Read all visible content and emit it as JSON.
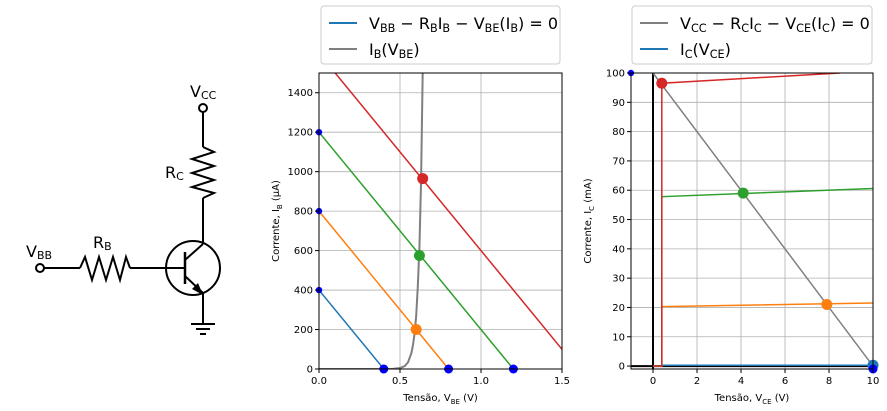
{
  "circuit": {
    "labels": {
      "vcc": {
        "main": "V",
        "sub": "CC"
      },
      "rc": {
        "main": "R",
        "sub": "C"
      },
      "vbb": {
        "main": "V",
        "sub": "BB"
      },
      "rb": {
        "main": "R",
        "sub": "B"
      }
    }
  },
  "chart_data": [
    {
      "type": "line",
      "xlabel": {
        "main": "Tensão, V",
        "sub": "BE",
        "unit": " (V)"
      },
      "ylabel": {
        "main": "Corrente, I",
        "sub": "B",
        "unit": " (µA)"
      },
      "xlim": [
        0,
        1.5
      ],
      "ylim": [
        0,
        1500
      ],
      "xticks": [
        "0.0",
        "0.5",
        "1.0",
        "1.5"
      ],
      "yticks": [
        "0",
        "200",
        "400",
        "600",
        "800",
        "1000",
        "1200",
        "1400"
      ],
      "xtick_values": [
        0,
        0.5,
        1.0,
        1.5
      ],
      "ytick_values": [
        0,
        200,
        400,
        600,
        800,
        1000,
        1200,
        1400
      ],
      "grid": true,
      "legend": {
        "placement": "top-outside",
        "entries": [
          {
            "label": "V_BB − R_B·I_B − V_BE(I_B) = 0",
            "color": "#1f77b4",
            "parts": [
              [
                "V",
                ""
              ],
              [
                "BB",
                "sub"
              ],
              [
                " − R",
                ""
              ],
              [
                "B",
                "sub"
              ],
              [
                "I",
                ""
              ],
              [
                "B",
                "sub"
              ],
              [
                " − V",
                ""
              ],
              [
                "BE",
                "sub"
              ],
              [
                "(I",
                ""
              ],
              [
                "B",
                "sub"
              ],
              [
                ") = 0",
                ""
              ]
            ]
          },
          {
            "label": "I_B(V_BE)",
            "color": "#7f7f7f",
            "parts": [
              [
                "I",
                ""
              ],
              [
                "B",
                "sub"
              ],
              [
                "(V",
                ""
              ],
              [
                "BE",
                "sub"
              ],
              [
                ")",
                ""
              ]
            ]
          }
        ]
      },
      "series": [
        {
          "color": "#1f77b4",
          "x": [
            0,
            0.4
          ],
          "y": [
            400,
            0
          ]
        },
        {
          "color": "#ff7f0e",
          "x": [
            0,
            0.8
          ],
          "y": [
            800,
            0
          ]
        },
        {
          "color": "#2ca02c",
          "x": [
            0,
            1.2
          ],
          "y": [
            1200,
            0
          ]
        },
        {
          "color": "#d62728",
          "x": [
            0,
            1.5
          ],
          "y": [
            1600,
            100
          ]
        }
      ],
      "diode_curve": {
        "color": "#7f7f7f",
        "x": [
          0,
          0.45,
          0.5,
          0.53,
          0.55,
          0.57,
          0.58,
          0.59,
          0.6,
          0.61,
          0.62,
          0.63,
          0.64
        ],
        "y": [
          0,
          0,
          5,
          15,
          35,
          80,
          120,
          180,
          270,
          420,
          620,
          950,
          1500
        ]
      },
      "operating_points": [
        {
          "x": 0.6,
          "y": 200,
          "color": "#ff7f0e"
        },
        {
          "x": 0.62,
          "y": 575,
          "color": "#2ca02c"
        },
        {
          "x": 0.64,
          "y": 965,
          "color": "#d62728"
        }
      ],
      "axis_markers": {
        "color": "#0000ff",
        "y_axis": [
          400,
          800,
          1200
        ],
        "x_axis": [
          0.4,
          0.8,
          1.2
        ]
      }
    },
    {
      "type": "line",
      "xlabel": {
        "main": "Tensão, V",
        "sub": "CE",
        "unit": " (V)"
      },
      "ylabel": {
        "main": "Corrente, I",
        "sub": "C",
        "unit": " (mA)"
      },
      "xlim": [
        -1,
        10
      ],
      "ylim": [
        -1,
        100
      ],
      "xticks": [
        "0",
        "2",
        "4",
        "6",
        "8",
        "10"
      ],
      "yticks": [
        "0",
        "10",
        "20",
        "30",
        "40",
        "50",
        "60",
        "70",
        "80",
        "90",
        "100"
      ],
      "xtick_values": [
        0,
        2,
        4,
        6,
        8,
        10
      ],
      "ytick_values": [
        0,
        10,
        20,
        30,
        40,
        50,
        60,
        70,
        80,
        90,
        100
      ],
      "grid": true,
      "legend": {
        "placement": "top-outside",
        "entries": [
          {
            "label": "V_CC − R_C·I_C − V_CE(I_C) = 0",
            "color": "#7f7f7f",
            "parts": [
              [
                "V",
                ""
              ],
              [
                "CC",
                "sub"
              ],
              [
                " − R",
                ""
              ],
              [
                "C",
                "sub"
              ],
              [
                "I",
                ""
              ],
              [
                "C",
                "sub"
              ],
              [
                " − V",
                ""
              ],
              [
                "CE",
                "sub"
              ],
              [
                "(I",
                ""
              ],
              [
                "C",
                "sub"
              ],
              [
                ") = 0",
                ""
              ]
            ]
          },
          {
            "label": "I_C(V_CE)",
            "color": "#1f77b4",
            "parts": [
              [
                "I",
                ""
              ],
              [
                "C",
                "sub"
              ],
              [
                "(V",
                ""
              ],
              [
                "CE",
                "sub"
              ],
              [
                ")",
                ""
              ]
            ]
          }
        ]
      },
      "load_line": {
        "color": "#7f7f7f",
        "x": [
          0,
          10
        ],
        "y": [
          100,
          0
        ]
      },
      "series": [
        {
          "color": "#1f77b4",
          "x": [
            0,
            0.4,
            0.4,
            10
          ],
          "y": [
            0,
            0,
            0.3,
            0.3
          ]
        },
        {
          "color": "#ff7f0e",
          "x": [
            0,
            0.4,
            0.4,
            10
          ],
          "y": [
            0,
            0,
            20.3,
            21.5
          ]
        },
        {
          "color": "#2ca02c",
          "x": [
            0,
            0.4,
            0.4,
            10
          ],
          "y": [
            0,
            0,
            57.8,
            60.6
          ]
        },
        {
          "color": "#d62728",
          "x": [
            0,
            0.4,
            0.4,
            8.5
          ],
          "y": [
            0,
            0,
            96.5,
            100
          ]
        }
      ],
      "operating_points": [
        {
          "x": 10,
          "y": 0.3,
          "color": "#1f77b4"
        },
        {
          "x": 7.9,
          "y": 21,
          "color": "#ff7f0e"
        },
        {
          "x": 4.1,
          "y": 59,
          "color": "#2ca02c"
        },
        {
          "x": 0.4,
          "y": 96.5,
          "color": "#d62728"
        }
      ],
      "axis_markers": {
        "color": "#0000ff",
        "y_axis": [
          100
        ],
        "x_axis": [
          10
        ]
      },
      "zero_axes": {
        "color": "#000000"
      }
    }
  ]
}
